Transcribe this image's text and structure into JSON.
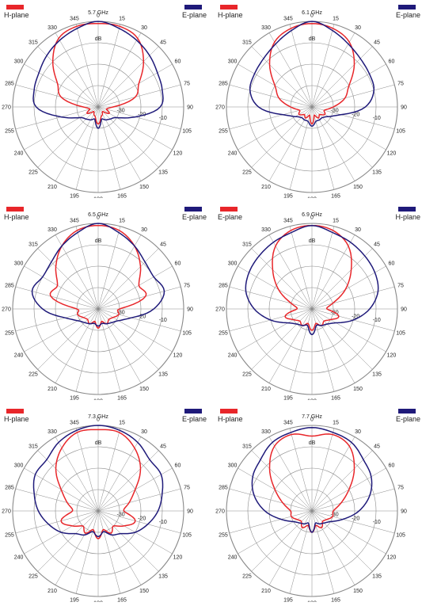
{
  "chart_data": [
    {
      "type": "polar-line",
      "title": "5.7 GHz",
      "unit_label": "dB",
      "angle_labels": [
        "0",
        "15",
        "30",
        "45",
        "60",
        "75",
        "90",
        "105",
        "120",
        "135",
        "150",
        "165",
        "180",
        "195",
        "210",
        "225",
        "240",
        "255",
        "270",
        "285",
        "300",
        "315",
        "330",
        "345"
      ],
      "radial_labels": [
        "-30",
        "-20",
        "-10"
      ],
      "radial_range_db": [
        -40,
        0
      ],
      "legend": [
        {
          "name": "H-plane",
          "color": "#e8262a",
          "position": "top-left"
        },
        {
          "name": "E-plane",
          "color": "#1f1a7a",
          "position": "top-right"
        }
      ],
      "series": [
        {
          "name": "H-plane",
          "color": "#e8262a",
          "angles_deg": [
            0,
            15,
            30,
            45,
            60,
            75,
            90,
            105,
            120,
            135,
            150,
            165,
            180,
            195,
            210,
            225,
            240,
            255,
            270,
            285,
            300,
            315,
            330,
            345
          ],
          "values_db": [
            -1,
            -1,
            -3,
            -10,
            -18,
            -22,
            -33,
            -36,
            -34,
            -37,
            -36,
            -35,
            -32,
            -35,
            -36,
            -37,
            -34,
            -36,
            -33,
            -22,
            -18,
            -10,
            -3,
            -1
          ]
        },
        {
          "name": "E-plane",
          "color": "#1f1a7a",
          "angles_deg": [
            0,
            15,
            30,
            45,
            60,
            75,
            90,
            105,
            120,
            135,
            150,
            165,
            180,
            195,
            210,
            225,
            240,
            255,
            270,
            285,
            300,
            315,
            330,
            345
          ],
          "values_db": [
            0,
            -2,
            -4,
            -6,
            -8,
            -9,
            -11,
            -22,
            -30,
            -32,
            -33,
            -34,
            -30,
            -34,
            -33,
            -32,
            -30,
            -22,
            -11,
            -9,
            -8,
            -6,
            -4,
            -2
          ]
        }
      ]
    },
    {
      "type": "polar-line",
      "title": "6.1 GHz",
      "unit_label": "dB",
      "angle_labels": [
        "0",
        "15",
        "30",
        "45",
        "60",
        "75",
        "90",
        "105",
        "120",
        "135",
        "150",
        "165",
        "180",
        "195",
        "210",
        "225",
        "240",
        "255",
        "270",
        "285",
        "300",
        "315",
        "330",
        "345"
      ],
      "radial_labels": [
        "-30",
        "-20",
        "-10"
      ],
      "radial_range_db": [
        -40,
        0
      ],
      "legend": [
        {
          "name": "H-plane",
          "color": "#e8262a",
          "position": "top-left"
        },
        {
          "name": "E-plane",
          "color": "#1f1a7a",
          "position": "top-right"
        }
      ],
      "series": [
        {
          "name": "H-plane",
          "color": "#e8262a",
          "angles_deg": [
            0,
            15,
            30,
            45,
            60,
            75,
            90,
            105,
            120,
            135,
            150,
            165,
            180,
            195,
            210,
            225,
            240,
            255,
            270,
            285,
            300,
            315,
            330,
            345
          ],
          "values_db": [
            -1,
            -2,
            -5,
            -12,
            -20,
            -24,
            -30,
            -34,
            -33,
            -35,
            -34,
            -36,
            -32,
            -36,
            -34,
            -35,
            -33,
            -34,
            -30,
            -24,
            -20,
            -12,
            -5,
            -2
          ]
        },
        {
          "name": "E-plane",
          "color": "#1f1a7a",
          "angles_deg": [
            0,
            15,
            30,
            45,
            60,
            75,
            90,
            105,
            120,
            135,
            150,
            165,
            180,
            195,
            210,
            225,
            240,
            255,
            270,
            285,
            300,
            315,
            330,
            345
          ],
          "values_db": [
            0,
            -3,
            -6,
            -8,
            -9,
            -10,
            -15,
            -26,
            -31,
            -33,
            -33,
            -33,
            -31,
            -33,
            -33,
            -33,
            -31,
            -26,
            -15,
            -10,
            -9,
            -8,
            -6,
            -3
          ]
        }
      ]
    },
    {
      "type": "polar-line",
      "title": "6.5 GHz",
      "unit_label": "dB",
      "angle_labels": [
        "0",
        "15",
        "30",
        "45",
        "60",
        "75",
        "90",
        "105",
        "120",
        "135",
        "150",
        "165",
        "180",
        "195",
        "210",
        "225",
        "240",
        "255",
        "270",
        "285",
        "300",
        "315",
        "330",
        "345"
      ],
      "radial_labels": [
        "-30",
        "-20",
        "-10"
      ],
      "radial_range_db": [
        -40,
        0
      ],
      "legend": [
        {
          "name": "H-plane",
          "color": "#e8262a",
          "position": "top-left"
        },
        {
          "name": "E-plane",
          "color": "#1f1a7a",
          "position": "top-right"
        }
      ],
      "series": [
        {
          "name": "H-plane",
          "color": "#e8262a",
          "angles_deg": [
            0,
            15,
            30,
            45,
            60,
            75,
            90,
            105,
            120,
            135,
            150,
            165,
            180,
            195,
            210,
            225,
            240,
            255,
            270,
            285,
            300,
            315,
            330,
            345
          ],
          "values_db": [
            -1,
            -2,
            -6,
            -12,
            -18,
            -17,
            -30,
            -30,
            -32,
            -33,
            -32,
            -34,
            -31,
            -34,
            -32,
            -33,
            -32,
            -30,
            -30,
            -17,
            -18,
            -12,
            -6,
            -2
          ]
        },
        {
          "name": "E-plane",
          "color": "#1f1a7a",
          "angles_deg": [
            0,
            15,
            30,
            45,
            60,
            75,
            90,
            105,
            120,
            135,
            150,
            165,
            180,
            195,
            210,
            225,
            240,
            255,
            270,
            285,
            300,
            315,
            330,
            345
          ],
          "values_db": [
            0,
            -3,
            -6,
            -9,
            -10,
            -8,
            -14,
            -24,
            -29,
            -31,
            -32,
            -33,
            -32,
            -33,
            -32,
            -31,
            -29,
            -24,
            -14,
            -8,
            -10,
            -9,
            -6,
            -3
          ]
        }
      ]
    },
    {
      "type": "polar-line",
      "title": "6.9 GHz",
      "unit_label": "dB",
      "angle_labels": [
        "0",
        "15",
        "30",
        "45",
        "60",
        "75",
        "90",
        "105",
        "120",
        "135",
        "150",
        "165",
        "180",
        "195",
        "210",
        "225",
        "240",
        "255",
        "270",
        "285",
        "300",
        "315",
        "330",
        "345"
      ],
      "radial_labels": [
        "-30",
        "-20",
        "-10"
      ],
      "radial_range_db": [
        -40,
        0
      ],
      "legend": [
        {
          "name": "E-plane",
          "color": "#e8262a",
          "position": "top-left"
        },
        {
          "name": "H-plane",
          "color": "#1f1a7a",
          "position": "top-right"
        }
      ],
      "series": [
        {
          "name": "E-plane",
          "color": "#e8262a",
          "angles_deg": [
            0,
            15,
            30,
            45,
            60,
            75,
            90,
            105,
            120,
            135,
            150,
            165,
            180,
            195,
            210,
            225,
            240,
            255,
            270,
            285,
            300,
            315,
            330,
            345
          ],
          "values_db": [
            -1,
            -2,
            -6,
            -14,
            -22,
            -30,
            -33,
            -27,
            -30,
            -32,
            -31,
            -33,
            -30,
            -33,
            -31,
            -32,
            -30,
            -27,
            -33,
            -30,
            -22,
            -14,
            -6,
            -2
          ]
        },
        {
          "name": "H-plane",
          "color": "#1f1a7a",
          "angles_deg": [
            0,
            15,
            30,
            45,
            60,
            75,
            90,
            105,
            120,
            135,
            150,
            165,
            180,
            195,
            210,
            225,
            240,
            255,
            270,
            285,
            300,
            315,
            330,
            345
          ],
          "values_db": [
            -1,
            -3,
            -4,
            -5,
            -6,
            -8,
            -13,
            -20,
            -27,
            -30,
            -31,
            -32,
            -28,
            -32,
            -31,
            -30,
            -27,
            -20,
            -13,
            -8,
            -6,
            -5,
            -4,
            -3
          ]
        }
      ]
    },
    {
      "type": "polar-line",
      "title": "7.3 GHz",
      "unit_label": "dB",
      "angle_labels": [
        "0",
        "15",
        "30",
        "45",
        "60",
        "75",
        "90",
        "105",
        "120",
        "135",
        "150",
        "165",
        "180",
        "195",
        "210",
        "225",
        "240",
        "255",
        "270",
        "285",
        "300",
        "315",
        "330",
        "345"
      ],
      "radial_labels": [
        "-30",
        "-20",
        "-10"
      ],
      "radial_range_db": [
        -40,
        0
      ],
      "legend": [
        {
          "name": "H-plane",
          "color": "#e8262a",
          "position": "top-left"
        },
        {
          "name": "E-plane",
          "color": "#1f1a7a",
          "position": "top-right"
        }
      ],
      "series": [
        {
          "name": "H-plane",
          "color": "#e8262a",
          "angles_deg": [
            0,
            15,
            30,
            45,
            60,
            75,
            90,
            105,
            120,
            135,
            150,
            165,
            180,
            195,
            210,
            225,
            240,
            255,
            270,
            285,
            300,
            315,
            330,
            345
          ],
          "values_db": [
            -2,
            -2,
            -6,
            -12,
            -20,
            -25,
            -28,
            -22,
            -26,
            -30,
            -28,
            -31,
            -27,
            -31,
            -28,
            -30,
            -26,
            -22,
            -28,
            -25,
            -20,
            -12,
            -6,
            -2
          ]
        },
        {
          "name": "E-plane",
          "color": "#1f1a7a",
          "angles_deg": [
            0,
            15,
            30,
            45,
            60,
            75,
            90,
            105,
            120,
            135,
            150,
            165,
            180,
            195,
            210,
            225,
            240,
            255,
            270,
            285,
            300,
            315,
            330,
            345
          ],
          "values_db": [
            0,
            -1,
            -3,
            -6,
            -6,
            -9,
            -12,
            -16,
            -20,
            -25,
            -27,
            -30,
            -28,
            -30,
            -27,
            -25,
            -20,
            -16,
            -12,
            -9,
            -6,
            -6,
            -3,
            -1
          ]
        }
      ]
    },
    {
      "type": "polar-line",
      "title": "7.7 GHz",
      "unit_label": "dB",
      "angle_labels": [
        "0",
        "15",
        "30",
        "45",
        "60",
        "75",
        "90",
        "105",
        "120",
        "135",
        "150",
        "165",
        "180",
        "195",
        "210",
        "225",
        "240",
        "255",
        "270",
        "285",
        "300",
        "315",
        "330",
        "345"
      ],
      "radial_labels": [
        "-30",
        "-20",
        "-10"
      ],
      "radial_range_db": [
        -40,
        0
      ],
      "legend": [
        {
          "name": "H-plane",
          "color": "#e8262a",
          "position": "top-left"
        },
        {
          "name": "E-plane",
          "color": "#1f1a7a",
          "position": "top-right"
        }
      ],
      "series": [
        {
          "name": "H-plane",
          "color": "#e8262a",
          "angles_deg": [
            0,
            15,
            30,
            45,
            60,
            75,
            90,
            105,
            120,
            135,
            150,
            165,
            180,
            195,
            210,
            225,
            240,
            255,
            270,
            285,
            300,
            315,
            330,
            345
          ],
          "values_db": [
            -5,
            -3,
            -5,
            -12,
            -20,
            -26,
            -30,
            -30,
            -32,
            -33,
            -31,
            -33,
            -30,
            -33,
            -31,
            -33,
            -32,
            -30,
            -30,
            -26,
            -20,
            -12,
            -5,
            -3
          ]
        },
        {
          "name": "E-plane",
          "color": "#1f1a7a",
          "angles_deg": [
            0,
            15,
            30,
            45,
            60,
            75,
            90,
            105,
            120,
            135,
            150,
            165,
            180,
            195,
            210,
            225,
            240,
            255,
            270,
            285,
            300,
            315,
            330,
            345
          ],
          "values_db": [
            -1,
            -2,
            -3,
            -6,
            -8,
            -12,
            -18,
            -25,
            -30,
            -32,
            -33,
            -34,
            -30,
            -34,
            -33,
            -32,
            -30,
            -25,
            -18,
            -12,
            -8,
            -6,
            -3,
            -2
          ]
        }
      ]
    }
  ]
}
